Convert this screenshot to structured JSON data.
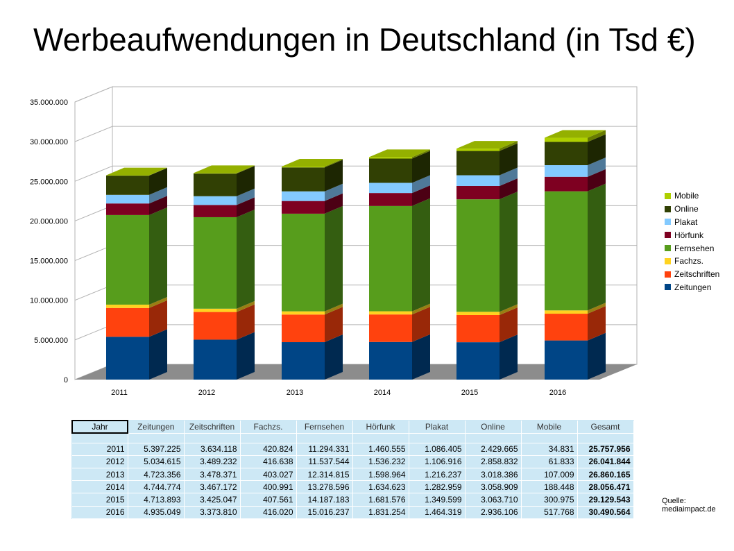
{
  "title": "Werbeaufwendungen in Deutschland (in Tsd €)",
  "chart_data": {
    "type": "bar",
    "stacked": true,
    "categories": [
      "2011",
      "2012",
      "2013",
      "2014",
      "2015",
      "2016"
    ],
    "ylim": [
      0,
      35000000
    ],
    "yticks": [
      0,
      5000000,
      10000000,
      15000000,
      20000000,
      25000000,
      30000000,
      35000000
    ],
    "ytick_labels": [
      "0",
      "5.000.000",
      "10.000.000",
      "15.000.000",
      "20.000.000",
      "25.000.000",
      "30.000.000",
      "35.000.000"
    ],
    "grid": true,
    "legend_position": "right",
    "series": [
      {
        "name": "Zeitungen",
        "color": "#004586",
        "values": [
          5397225,
          5034615,
          4723356,
          4744774,
          4713893,
          4935049
        ]
      },
      {
        "name": "Zeitschriften",
        "color": "#ff420e",
        "values": [
          3634118,
          3489232,
          3478371,
          3467172,
          3425047,
          3373810
        ]
      },
      {
        "name": "Fachzs.",
        "color": "#ffd320",
        "values": [
          420824,
          416638,
          403027,
          400991,
          407561,
          416020
        ]
      },
      {
        "name": "Fernsehen",
        "color": "#579d1c",
        "values": [
          11294331,
          11537544,
          12314815,
          13278596,
          14187183,
          15016237
        ]
      },
      {
        "name": "Hörfunk",
        "color": "#7e0021",
        "values": [
          1460555,
          1536232,
          1598964,
          1634623,
          1681576,
          1831254
        ]
      },
      {
        "name": "Plakat",
        "color": "#83caff",
        "values": [
          1086405,
          1106916,
          1216237,
          1282959,
          1349599,
          1464319
        ]
      },
      {
        "name": "Online",
        "color": "#314004",
        "values": [
          2429665,
          2858832,
          3018386,
          3058909,
          3063710,
          2936106
        ]
      },
      {
        "name": "Mobile",
        "color": "#aecf00",
        "values": [
          34831,
          61833,
          107009,
          188448,
          300975,
          517768
        ]
      }
    ]
  },
  "table": {
    "headers": [
      "Jahr",
      "Zeitungen",
      "Zeitschriften",
      "Fachzs.",
      "Fernsehen",
      "Hörfunk",
      "Plakat",
      "Online",
      "Mobile",
      "Gesamt"
    ],
    "rows": [
      [
        "2011",
        "5.397.225",
        "3.634.118",
        "420.824",
        "11.294.331",
        "1.460.555",
        "1.086.405",
        "2.429.665",
        "34.831",
        "25.757.956"
      ],
      [
        "2012",
        "5.034.615",
        "3.489.232",
        "416.638",
        "11.537.544",
        "1.536.232",
        "1.106.916",
        "2.858.832",
        "61.833",
        "26.041.844"
      ],
      [
        "2013",
        "4.723.356",
        "3.478.371",
        "403.027",
        "12.314.815",
        "1.598.964",
        "1.216.237",
        "3.018.386",
        "107.009",
        "26.860.165"
      ],
      [
        "2014",
        "4.744.774",
        "3.467.172",
        "400.991",
        "13.278.596",
        "1.634.623",
        "1.282.959",
        "3.058.909",
        "188.448",
        "28.056.471"
      ],
      [
        "2015",
        "4.713.893",
        "3.425.047",
        "407.561",
        "14.187.183",
        "1.681.576",
        "1.349.599",
        "3.063.710",
        "300.975",
        "29.129.543"
      ],
      [
        "2016",
        "4.935.049",
        "3.373.810",
        "416.020",
        "15.016.237",
        "1.831.254",
        "1.464.319",
        "2.936.106",
        "517.768",
        "30.490.564"
      ]
    ]
  },
  "source_note": {
    "line1": "Quelle:",
    "line2": "mediaimpact.de"
  }
}
